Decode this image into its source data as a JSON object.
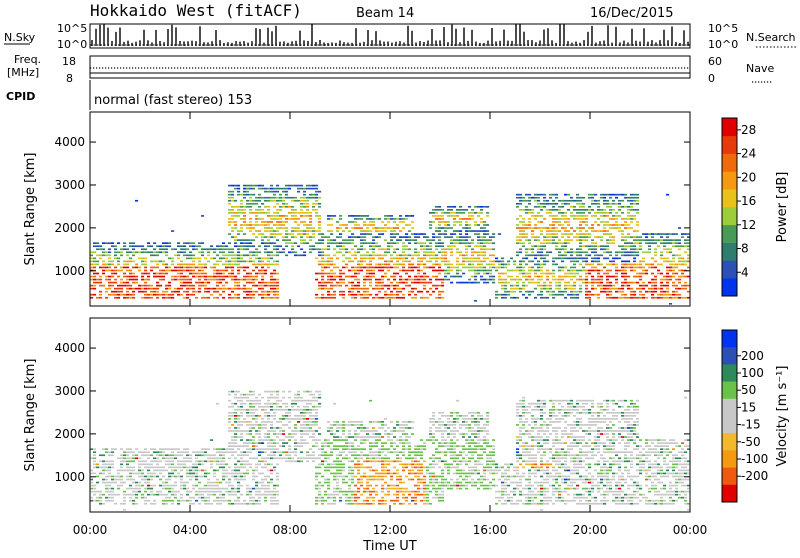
{
  "header": {
    "radar": "Hokkaido West (fitACF)",
    "beam": "Beam 14",
    "date": "16/Dec/2015"
  },
  "top_panels": {
    "nsky_label": "N.Sky",
    "nsky_ticks": [
      "10^5",
      "10^0"
    ],
    "nsearch_label": "N.Search",
    "nsearch_ticks": [
      "10^5",
      "10^0"
    ],
    "freq_label_1": "Freq.",
    "freq_label_2": "[MHz]",
    "freq_ticks": [
      "18",
      "8"
    ],
    "nave_label": "Nave",
    "nave_ticks": [
      "60",
      "0"
    ],
    "cpid_label": "CPID",
    "cpid_text": "normal (fast stereo) 153"
  },
  "colors": {
    "power_scale": [
      "#0033ee",
      "#2a4fb5",
      "#2e7d6e",
      "#4a9a57",
      "#9ccd3a",
      "#e8c21a",
      "#f39a10",
      "#ef6a0c",
      "#e63a0a",
      "#e00000"
    ],
    "velocity_scale": [
      "#e00000",
      "#ef5a10",
      "#f39a10",
      "#f3b82e",
      "#c8c8c8",
      "#c8c8c8",
      "#6ac24a",
      "#2e8a5a",
      "#2a4fb5",
      "#0033ee"
    ]
  },
  "chart_data": [
    {
      "type": "heatmap",
      "name": "power",
      "x_ticks": [
        "00:00",
        "04:00",
        "08:00",
        "12:00",
        "16:00",
        "20:00",
        "00:00"
      ],
      "xlim_hours": [
        0,
        24
      ],
      "ylabel": "Slant Range [km]",
      "y_ticks": [
        1000,
        2000,
        3000,
        4000
      ],
      "ylim": [
        180,
        4700
      ],
      "colorbar_label": "Power [dB]",
      "colorbar_ticks": [
        4,
        8,
        12,
        16,
        20,
        24,
        28
      ],
      "colorbar_range": [
        0,
        30
      ]
    },
    {
      "type": "heatmap",
      "name": "velocity",
      "x_ticks": [
        "00:00",
        "04:00",
        "08:00",
        "12:00",
        "16:00",
        "20:00",
        "00:00"
      ],
      "xlim_hours": [
        0,
        24
      ],
      "xlabel": "Time UT",
      "ylabel": "Slant Range [km]",
      "y_ticks": [
        1000,
        2000,
        3000,
        4000
      ],
      "ylim": [
        180,
        4700
      ],
      "colorbar_label": "Velocity [m s⁻¹]",
      "colorbar_ticks": [
        200,
        100,
        50,
        15,
        -15,
        -50,
        -100,
        -200
      ]
    }
  ]
}
